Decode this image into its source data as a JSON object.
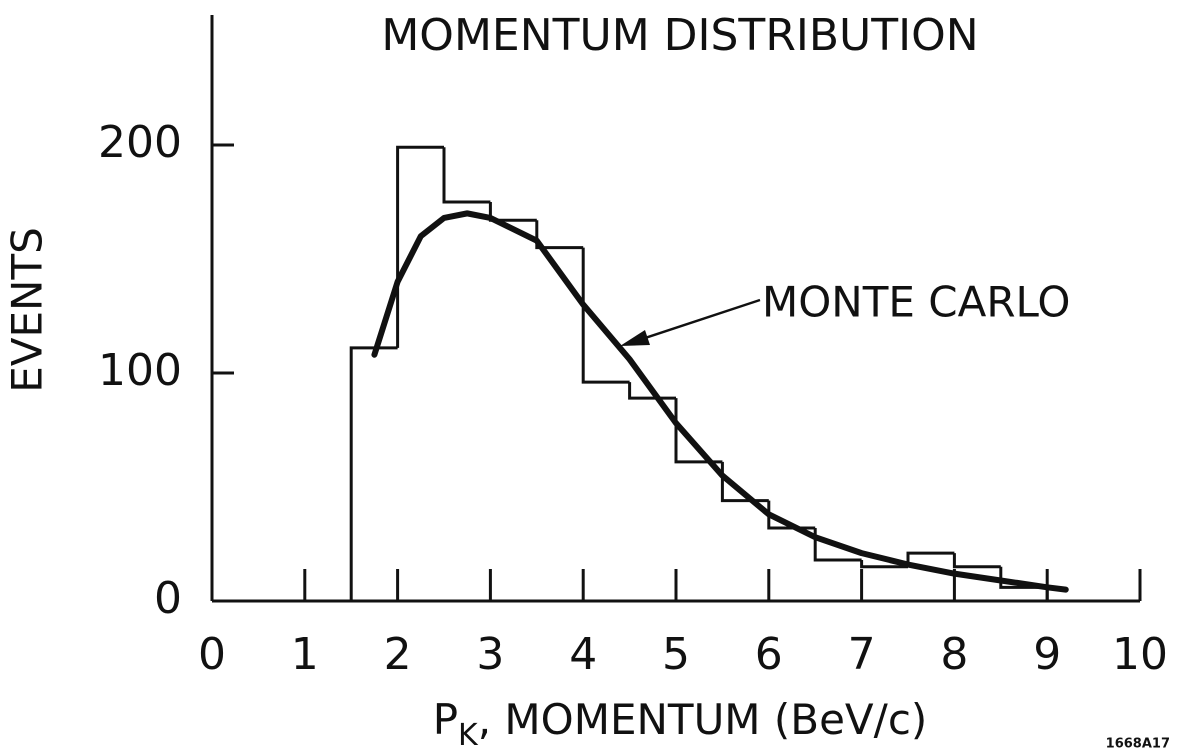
{
  "chart_data": {
    "type": "histogram",
    "title": "MOMENTUM DISTRIBUTION",
    "x_label": {
      "main": "P",
      "sub": "K",
      "rest": ", MOMENTUM (BeV/c)"
    },
    "y_label": "EVENTS",
    "bins": [
      1.5,
      2.0,
      2.5,
      3.0,
      3.5,
      4.0,
      4.5,
      5.0,
      5.5,
      6.0,
      6.5,
      7.0,
      7.5,
      8.0,
      8.5,
      9.0
    ],
    "values": [
      111,
      199,
      175,
      167,
      155,
      96,
      89,
      61,
      44,
      32,
      18,
      15,
      21,
      15,
      6
    ],
    "color": "#111111",
    "series": [
      {
        "name": "MONTE CARLO",
        "color": "#111111",
        "x": [
          1.75,
          2.0,
          2.25,
          2.5,
          2.75,
          3.0,
          3.5,
          4.0,
          4.5,
          5.0,
          5.5,
          6.0,
          6.5,
          7.0,
          7.5,
          8.0,
          8.5,
          9.0,
          9.2
        ],
        "values": [
          108,
          140,
          160,
          168,
          170,
          168,
          158,
          130,
          106,
          78,
          55,
          38,
          28,
          21,
          16,
          12,
          9,
          6,
          5
        ]
      }
    ],
    "xlim": [
      0,
      10
    ],
    "ylim": [
      0,
      257
    ],
    "xticks": [
      0,
      1,
      2,
      3,
      4,
      5,
      6,
      7,
      8,
      9,
      10
    ],
    "yticks": [
      0,
      100,
      200
    ],
    "figure_code": "1668A17"
  }
}
